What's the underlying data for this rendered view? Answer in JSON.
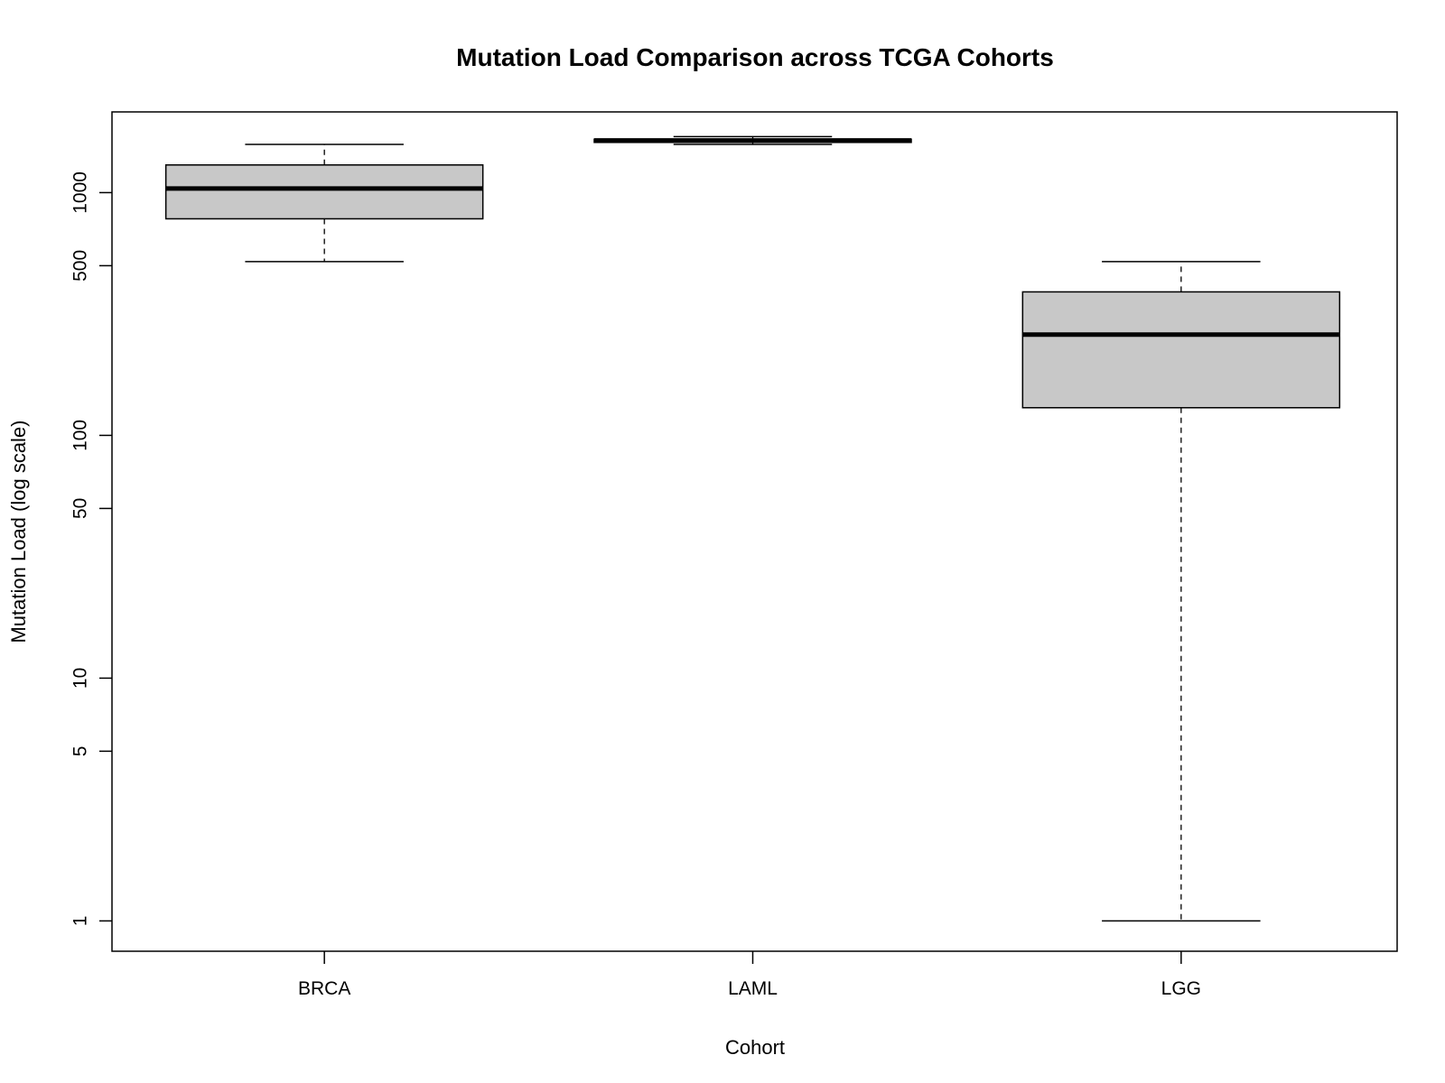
{
  "chart_data": {
    "type": "box",
    "title": "Mutation Load Comparison across TCGA Cohorts",
    "xlabel": "Cohort",
    "ylabel": "Mutation Load (log scale)",
    "y_scale": "log",
    "ylim": [
      0.75,
      2150
    ],
    "y_ticks": [
      1,
      5,
      10,
      50,
      100,
      500,
      1000
    ],
    "y_tick_labels": [
      "1",
      "5",
      "10",
      "50",
      "100",
      "500",
      "1000"
    ],
    "categories": [
      "BRCA",
      "LAML",
      "LGG"
    ],
    "box_fill": "#c8c8c8",
    "series": [
      {
        "category": "BRCA",
        "whisker_low": 520,
        "q1": 780,
        "median": 1040,
        "q3": 1300,
        "whisker_high": 1580
      },
      {
        "category": "LAML",
        "whisker_low": 1580,
        "q1": 1610,
        "median": 1640,
        "q3": 1660,
        "whisker_high": 1700
      },
      {
        "category": "LGG",
        "whisker_low": 1,
        "q1": 130,
        "median": 260,
        "q3": 390,
        "whisker_high": 520
      }
    ]
  }
}
